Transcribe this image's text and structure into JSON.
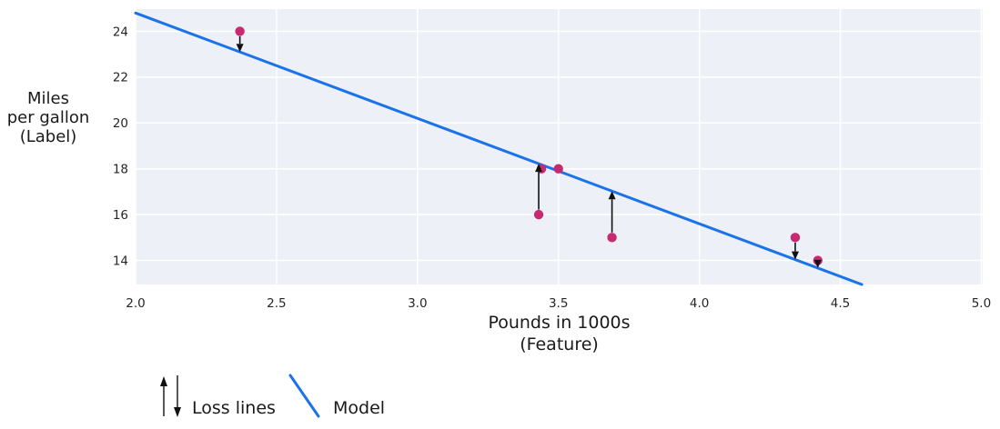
{
  "chart_data": {
    "type": "scatter",
    "title": "",
    "xlabel_lines": [
      "Pounds in 1000s",
      "(Feature)"
    ],
    "ylabel_lines": [
      "Miles",
      "per gallon",
      "(Label)"
    ],
    "xlim": [
      2.0,
      5.005
    ],
    "ylim": [
      12.95,
      24.97
    ],
    "x_ticks": [
      "2.0",
      "2.5",
      "3.0",
      "3.5",
      "4.0",
      "4.5",
      "5.0"
    ],
    "x_tick_values": [
      2.0,
      2.5,
      3.0,
      3.5,
      4.0,
      4.5,
      5.0
    ],
    "y_ticks": [
      "14",
      "16",
      "18",
      "20",
      "22",
      "24"
    ],
    "y_tick_values": [
      14,
      16,
      18,
      20,
      22,
      24
    ],
    "points": [
      {
        "x": 2.37,
        "y": 24,
        "loss": "down"
      },
      {
        "x": 3.43,
        "y": 16,
        "loss": "up"
      },
      {
        "x": 3.44,
        "y": 18,
        "loss": null
      },
      {
        "x": 3.5,
        "y": 18,
        "loss": null
      },
      {
        "x": 3.69,
        "y": 15,
        "loss": "up"
      },
      {
        "x": 4.34,
        "y": 15,
        "loss": "down"
      },
      {
        "x": 4.42,
        "y": 14,
        "loss": "down"
      }
    ],
    "model_line": {
      "slope": -4.6,
      "intercept": 34
    },
    "grid": true,
    "legend_position": "bottom-left"
  },
  "style": {
    "plot_bg": "#edf0f7",
    "grid_color": "#ffffff",
    "point_color": "#c62a70",
    "model_color": "#1a73e8",
    "loss_color": "#111111",
    "text_color": "#1a1a1a",
    "tick_color": "#262626"
  },
  "legend": {
    "loss_label": "Loss lines",
    "model_label": "Model"
  }
}
